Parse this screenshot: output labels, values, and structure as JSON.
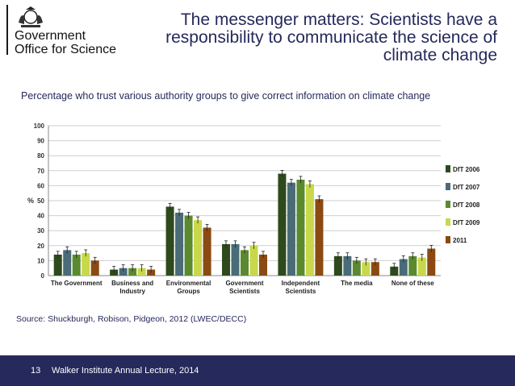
{
  "logo": {
    "line1": "Government",
    "line2": "Office for Science"
  },
  "title": "The messenger matters: Scientists have a responsibility to communicate the science of climate change",
  "subtitle": "Percentage who trust various authority groups to give correct information on climate change",
  "source": "Source: Shuckburgh, Robison, Pidgeon, 2012 (LWEC/DECC)",
  "footer": {
    "slide_number": "13",
    "text": "Walker Institute Annual Lecture, 2014"
  },
  "chart_data": {
    "type": "bar",
    "ylabel": "%",
    "ylim": [
      0,
      100
    ],
    "yticks": [
      0,
      10,
      20,
      30,
      40,
      50,
      60,
      70,
      80,
      90,
      100
    ],
    "grid": true,
    "legend_position": "right",
    "error_bars": true,
    "categories": [
      [
        "The Government"
      ],
      [
        "Business and",
        "Industry"
      ],
      [
        "Environmental",
        "Groups"
      ],
      [
        "Government",
        "Scientists"
      ],
      [
        "Independent",
        "Scientists"
      ],
      [
        "The media"
      ],
      [
        "None of these"
      ]
    ],
    "series": [
      {
        "name": "DfT 2006",
        "color": "#2e4a1c",
        "values": [
          14,
          4,
          46,
          21,
          68,
          13,
          6
        ]
      },
      {
        "name": "DfT 2007",
        "color": "#4a6b78",
        "values": [
          17,
          5,
          42,
          21,
          62,
          13,
          11
        ]
      },
      {
        "name": "DfT 2008",
        "color": "#5b8a2e",
        "values": [
          14,
          5,
          40,
          17,
          64,
          10,
          13
        ]
      },
      {
        "name": "DfT 2009",
        "color": "#c8d84a",
        "values": [
          15,
          5,
          37,
          20,
          61,
          9,
          12
        ]
      },
      {
        "name": "2011",
        "color": "#8a4a12",
        "values": [
          10,
          4,
          32,
          14,
          51,
          9,
          18
        ]
      }
    ]
  }
}
